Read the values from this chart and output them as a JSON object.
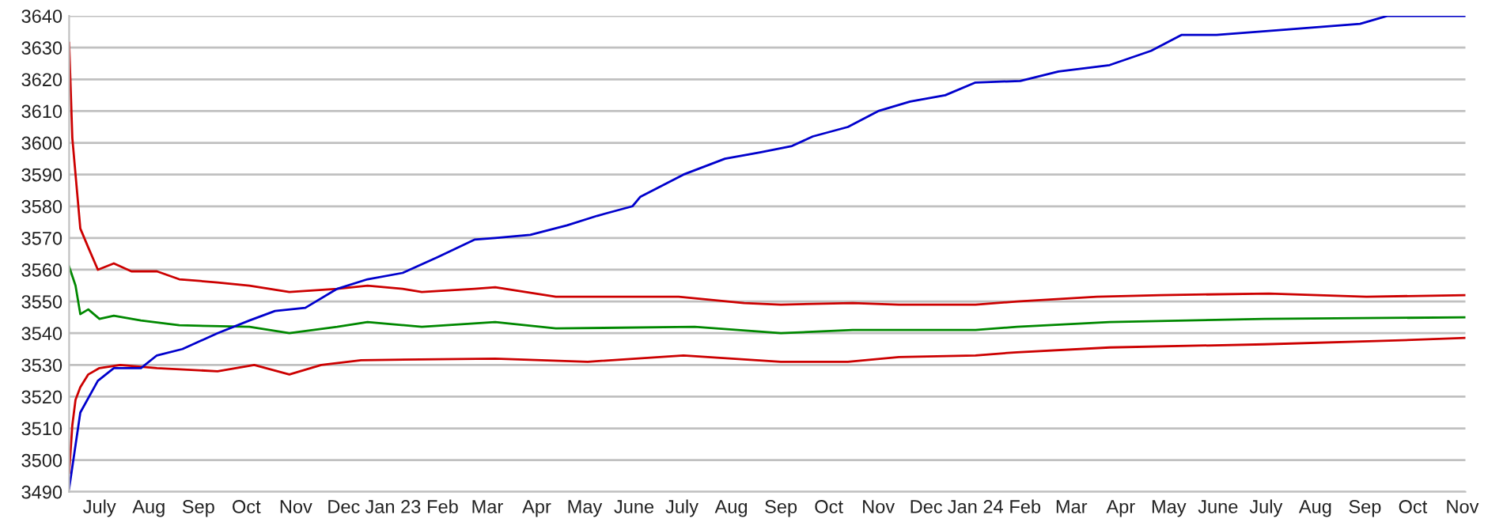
{
  "chart_data": {
    "type": "line",
    "ylim": [
      3490,
      3640
    ],
    "yticks": [
      3490,
      3500,
      3510,
      3520,
      3530,
      3540,
      3550,
      3560,
      3570,
      3580,
      3590,
      3600,
      3610,
      3620,
      3630,
      3640
    ],
    "xlim": [
      "2022-06-26",
      "2024-11-17"
    ],
    "xticks": [
      {
        "value": "2022-07-15",
        "label": "July"
      },
      {
        "value": "2022-08-15",
        "label": "Aug"
      },
      {
        "value": "2022-09-15",
        "label": "Sep"
      },
      {
        "value": "2022-10-15",
        "label": "Oct"
      },
      {
        "value": "2022-11-15",
        "label": "Nov"
      },
      {
        "value": "2022-12-15",
        "label": "Dec"
      },
      {
        "value": "2023-01-15",
        "label": "Jan 23"
      },
      {
        "value": "2023-02-15",
        "label": "Feb"
      },
      {
        "value": "2023-03-15",
        "label": "Mar"
      },
      {
        "value": "2023-04-15",
        "label": "Apr"
      },
      {
        "value": "2023-05-15",
        "label": "May"
      },
      {
        "value": "2023-06-15",
        "label": "June"
      },
      {
        "value": "2023-07-15",
        "label": "July"
      },
      {
        "value": "2023-08-15",
        "label": "Aug"
      },
      {
        "value": "2023-09-15",
        "label": "Sep"
      },
      {
        "value": "2023-10-15",
        "label": "Oct"
      },
      {
        "value": "2023-11-15",
        "label": "Nov"
      },
      {
        "value": "2023-12-15",
        "label": "Dec"
      },
      {
        "value": "2024-01-15",
        "label": "Jan 24"
      },
      {
        "value": "2024-02-15",
        "label": "Feb"
      },
      {
        "value": "2024-03-15",
        "label": "Mar"
      },
      {
        "value": "2024-04-15",
        "label": "Apr"
      },
      {
        "value": "2024-05-15",
        "label": "May"
      },
      {
        "value": "2024-06-15",
        "label": "June"
      },
      {
        "value": "2024-07-15",
        "label": "July"
      },
      {
        "value": "2024-08-15",
        "label": "Aug"
      },
      {
        "value": "2024-09-15",
        "label": "Sep"
      },
      {
        "value": "2024-10-15",
        "label": "Oct"
      },
      {
        "value": "2024-11-15",
        "label": "Nov"
      }
    ],
    "grid": "y",
    "marker": "none",
    "line_style": "solid",
    "series": [
      {
        "color": "#cc0000",
        "x": [
          "2022-06-26",
          "2022-06-28",
          "2022-07-03",
          "2022-07-08",
          "2022-07-14",
          "2022-07-24",
          "2022-08-04",
          "2022-08-20",
          "2022-09-03",
          "2022-09-27",
          "2022-10-17",
          "2022-11-11",
          "2022-12-11",
          "2022-12-30",
          "2023-01-21",
          "2023-02-02",
          "2023-03-07",
          "2023-03-20",
          "2023-04-27",
          "2023-07-13",
          "2023-08-23",
          "2023-09-15",
          "2023-10-30",
          "2023-11-28",
          "2024-01-15",
          "2024-02-10",
          "2024-03-31",
          "2024-05-10",
          "2024-07-17",
          "2024-09-16",
          "2024-11-17"
        ],
        "values": [
          3631.5,
          3601.5,
          3573,
          3567,
          3560,
          3562,
          3559.5,
          3559.5,
          3557,
          3556,
          3555,
          3553,
          3554,
          3555,
          3554,
          3553,
          3554,
          3554.5,
          3551.5,
          3551.5,
          3549.5,
          3549,
          3549.5,
          3549,
          3549,
          3550,
          3551.5,
          3552,
          3552.5,
          3551.5,
          3552
        ]
      },
      {
        "color": "#008800",
        "x": [
          "2022-06-26",
          "2022-06-30",
          "2022-07-03",
          "2022-07-08",
          "2022-07-15",
          "2022-07-24",
          "2022-08-10",
          "2022-09-03",
          "2022-10-17",
          "2022-11-11",
          "2022-12-11",
          "2022-12-30",
          "2023-02-02",
          "2023-03-20",
          "2023-04-27",
          "2023-07-23",
          "2023-09-15",
          "2023-10-30",
          "2024-01-15",
          "2024-02-10",
          "2024-04-08",
          "2024-07-14",
          "2024-11-17"
        ],
        "values": [
          3561,
          3555,
          3546,
          3547.5,
          3544.5,
          3545.5,
          3544,
          3542.5,
          3542,
          3540,
          3542,
          3543.5,
          3542,
          3543.5,
          3541.5,
          3542,
          3540,
          3541,
          3541,
          3542,
          3543.5,
          3544.5,
          3545
        ]
      },
      {
        "color": "#cc0000",
        "x": [
          "2022-06-26",
          "2022-06-28",
          "2022-06-30",
          "2022-07-03",
          "2022-07-08",
          "2022-07-15",
          "2022-07-28",
          "2022-08-20",
          "2022-09-27",
          "2022-10-20",
          "2022-11-11",
          "2022-12-01",
          "2022-12-26",
          "2023-03-20",
          "2023-05-17",
          "2023-07-16",
          "2023-09-15",
          "2023-10-27",
          "2023-11-28",
          "2024-01-15",
          "2024-02-10",
          "2024-04-08",
          "2024-07-14",
          "2024-09-22",
          "2024-11-17"
        ],
        "values": [
          3496,
          3511,
          3519,
          3523,
          3527,
          3529,
          3530,
          3529,
          3528,
          3530,
          3527,
          3530,
          3531.5,
          3532,
          3531,
          3533,
          3531,
          3531,
          3532.5,
          3533,
          3534,
          3535.5,
          3536.5,
          3537.5,
          3538.5
        ]
      },
      {
        "color": "#0000cc",
        "x": [
          "2022-06-26",
          "2022-07-03",
          "2022-07-14",
          "2022-07-24",
          "2022-08-10",
          "2022-08-20",
          "2022-09-05",
          "2022-09-27",
          "2022-10-17",
          "2022-11-02",
          "2022-11-21",
          "2022-12-11",
          "2022-12-30",
          "2023-01-21",
          "2023-02-12",
          "2023-03-07",
          "2023-03-20",
          "2023-04-11",
          "2023-05-04",
          "2023-05-23",
          "2023-06-14",
          "2023-06-19",
          "2023-07-16",
          "2023-08-11",
          "2023-09-02",
          "2023-09-22",
          "2023-10-05",
          "2023-10-27",
          "2023-11-15",
          "2023-12-05",
          "2023-12-27",
          "2024-01-15",
          "2024-02-12",
          "2024-03-07",
          "2024-04-08",
          "2024-05-04",
          "2024-05-23",
          "2024-06-14",
          "2024-07-23",
          "2024-09-12",
          "2024-09-29",
          "2024-11-17"
        ],
        "values": [
          3491,
          3515,
          3525,
          3529,
          3529,
          3533,
          3535,
          3540,
          3544,
          3547,
          3548,
          3554,
          3557,
          3559,
          3564,
          3569.5,
          3570,
          3571,
          3574,
          3577,
          3580,
          3583,
          3590,
          3595,
          3597,
          3599,
          3602,
          3605,
          3610,
          3613,
          3615,
          3619,
          3619.5,
          3622.5,
          3624.5,
          3629,
          3634,
          3634,
          3635.5,
          3637.5,
          3640,
          3640
        ]
      }
    ]
  }
}
